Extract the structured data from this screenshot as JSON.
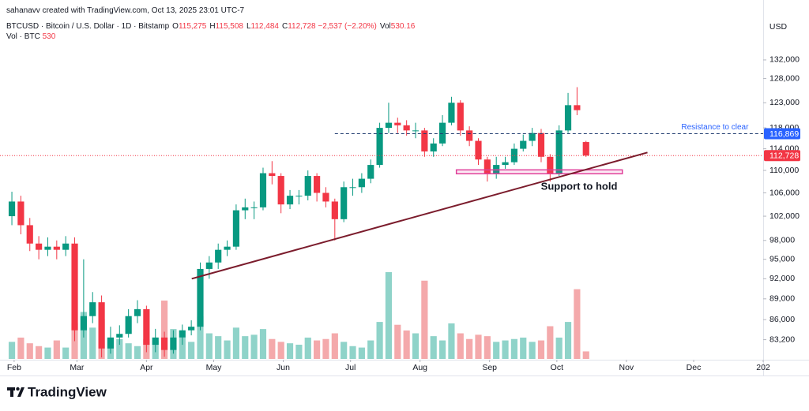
{
  "header": {
    "credit": "sahanavv created with TradingView.com, Oct 13, 2025 23:01 UTC-7",
    "symbol": "BTCUSD · Bitcoin / U.S. Dollar · 1D · Bitstamp",
    "ohlc": [
      {
        "key": "O",
        "value": "115,275"
      },
      {
        "key": "H",
        "value": "115,508"
      },
      {
        "key": "L",
        "value": "112,484"
      },
      {
        "key": "C",
        "value": "112,728"
      },
      {
        "value": "−2,537 (−2.20%)"
      },
      {
        "key": "Vol",
        "value": "530.16"
      }
    ],
    "volume_legend": {
      "key": "Vol · BTC",
      "value": "530"
    }
  },
  "chart_data": {
    "type": "candlestick",
    "currency": "USD",
    "log_scale": true,
    "up_color": "#089981",
    "down_color": "#f23645",
    "up_volume_color": "#8fd3c9",
    "down_volume_color": "#f4a9ab",
    "x": [
      30,
      34,
      38,
      42,
      46,
      50,
      54,
      58,
      62,
      66,
      70,
      74,
      78,
      82,
      86,
      90,
      94,
      98,
      102,
      106,
      110,
      114,
      118,
      122,
      126,
      130,
      134,
      138,
      142,
      146,
      150,
      154,
      158,
      162,
      166,
      170,
      174,
      178,
      182,
      186,
      190,
      194,
      198,
      202,
      206,
      210,
      214,
      218,
      222,
      226,
      230,
      234,
      238,
      242,
      246,
      250,
      254,
      258,
      262,
      266,
      270,
      274,
      278,
      282,
      286
    ],
    "open": [
      102000,
      104500,
      100500,
      97500,
      96500,
      97000,
      96500,
      97500,
      84500,
      86500,
      88500,
      82000,
      83500,
      84000,
      86500,
      87500,
      82500,
      83500,
      81800,
      83500,
      84500,
      85000,
      93500,
      94500,
      96500,
      97000,
      103000,
      103500,
      103500,
      109500,
      109000,
      104000,
      105500,
      105500,
      109000,
      106000,
      104500,
      101500,
      107000,
      107000,
      108500,
      111000,
      118000,
      119000,
      118500,
      117500,
      117500,
      113500,
      115000,
      119000,
      123000,
      117500,
      115500,
      112000,
      109500,
      111000,
      111500,
      114000,
      115500,
      117000,
      112500,
      109500,
      117500,
      122500,
      115275
    ],
    "high": [
      106200,
      105500,
      101700,
      98700,
      98500,
      98000,
      98700,
      98500,
      95000,
      90000,
      89500,
      85000,
      85200,
      87500,
      88800,
      88000,
      84700,
      84300,
      84500,
      85300,
      85900,
      94500,
      95500,
      97500,
      98000,
      104000,
      105000,
      104500,
      110500,
      111700,
      109500,
      106500,
      106500,
      110000,
      109500,
      107000,
      105000,
      108000,
      108500,
      109500,
      112000,
      119000,
      123000,
      120000,
      119500,
      119000,
      118000,
      116000,
      120500,
      124200,
      123500,
      118300,
      116000,
      112500,
      112500,
      112500,
      115000,
      116700,
      118000,
      117800,
      113000,
      118500,
      125000,
      126200,
      115508
    ],
    "low": [
      100500,
      99000,
      96300,
      95000,
      95500,
      95000,
      95500,
      83000,
      83500,
      85500,
      80800,
      81300,
      82500,
      83500,
      85500,
      81500,
      81500,
      80900,
      81300,
      82500,
      83800,
      84500,
      92000,
      93500,
      95500,
      96500,
      101500,
      101500,
      103000,
      107500,
      102500,
      103200,
      104000,
      104700,
      104500,
      103500,
      98000,
      101000,
      105500,
      106000,
      107700,
      110500,
      117000,
      117000,
      116500,
      116000,
      112500,
      112500,
      114500,
      118500,
      116500,
      114500,
      111000,
      108000,
      108500,
      110300,
      111000,
      113500,
      114500,
      111500,
      108000,
      109000,
      117000,
      120500,
      112484
    ],
    "close": [
      104500,
      100500,
      97500,
      96500,
      97000,
      96500,
      97500,
      84500,
      86500,
      88500,
      82000,
      83500,
      84000,
      86500,
      87500,
      82500,
      83500,
      81800,
      83500,
      84500,
      85000,
      93500,
      94500,
      96500,
      97000,
      103000,
      103500,
      103500,
      109500,
      109000,
      104000,
      105500,
      105500,
      109000,
      106000,
      104500,
      101500,
      107000,
      107000,
      108500,
      111000,
      118000,
      119000,
      118500,
      117500,
      117500,
      113500,
      115000,
      119000,
      123000,
      117500,
      115500,
      112000,
      109500,
      111000,
      111500,
      114000,
      115500,
      117000,
      112500,
      109500,
      117500,
      122500,
      121500,
      112728
    ],
    "volume": [
      1200,
      1500,
      1100,
      900,
      800,
      1300,
      800,
      2500,
      3300,
      2200,
      2800,
      1500,
      1400,
      1100,
      900,
      1400,
      1300,
      4100,
      2100,
      1500,
      1200,
      3000,
      1800,
      1600,
      1300,
      2200,
      1600,
      1700,
      2100,
      1400,
      1200,
      1100,
      1000,
      1500,
      1300,
      1400,
      1800,
      1200,
      900,
      800,
      1300,
      2600,
      6100,
      2400,
      2000,
      1800,
      5500,
      1600,
      1300,
      2500,
      1800,
      1400,
      1700,
      1600,
      1200,
      1300,
      1400,
      1500,
      1200,
      1300,
      2300,
      1500,
      2600,
      4900,
      530.16
    ],
    "volume_lim": [
      0,
      24000
    ],
    "xlim": [
      24.7,
      365
    ],
    "xticks": [
      {
        "value": 31,
        "label": "Feb"
      },
      {
        "value": 59,
        "label": "Mar"
      },
      {
        "value": 90,
        "label": "Apr"
      },
      {
        "value": 120,
        "label": "May"
      },
      {
        "value": 151,
        "label": "Jun"
      },
      {
        "value": 181,
        "label": "Jul"
      },
      {
        "value": 212,
        "label": "Aug"
      },
      {
        "value": 243,
        "label": "Sep"
      },
      {
        "value": 273,
        "label": "Oct"
      },
      {
        "value": 304,
        "label": "Nov"
      },
      {
        "value": 334,
        "label": "Dec"
      },
      {
        "value": 365,
        "label": "202"
      }
    ],
    "ylim": [
      80600,
      141600
    ],
    "yticks": [
      {
        "value": 83200,
        "label": "83,200"
      },
      {
        "value": 86000,
        "label": "86,000"
      },
      {
        "value": 89000,
        "label": "89,000"
      },
      {
        "value": 92000,
        "label": "92,000"
      },
      {
        "value": 95000,
        "label": "95,000"
      },
      {
        "value": 98000,
        "label": "98,000"
      },
      {
        "value": 102000,
        "label": "102,000"
      },
      {
        "value": 106000,
        "label": "106,000"
      },
      {
        "value": 110000,
        "label": "110,000"
      },
      {
        "value": 114000,
        "label": "114,000"
      },
      {
        "value": 118000,
        "label": "118,000"
      },
      {
        "value": 123000,
        "label": "123,000"
      },
      {
        "value": 128000,
        "label": "128,000"
      },
      {
        "value": 132000,
        "label": "132,000"
      }
    ],
    "resistance": {
      "value": 116869,
      "label": "116,869",
      "text": "Resistance to clear",
      "x_start": 174,
      "color": "#2962ff"
    },
    "last_price": {
      "value": 112728,
      "label": "112,728",
      "color": "#f23645"
    },
    "trendline": {
      "x": [
        110.2,
        313.4
      ],
      "y": [
        92000,
        113300
      ],
      "color": "#7b1c2c"
    },
    "support_zone": {
      "x": [
        228.2,
        302.2
      ],
      "y": [
        109400,
        110100
      ],
      "text": "Support to hold",
      "color": "#e0409a"
    }
  },
  "footer": {
    "brand": "TradingView"
  }
}
